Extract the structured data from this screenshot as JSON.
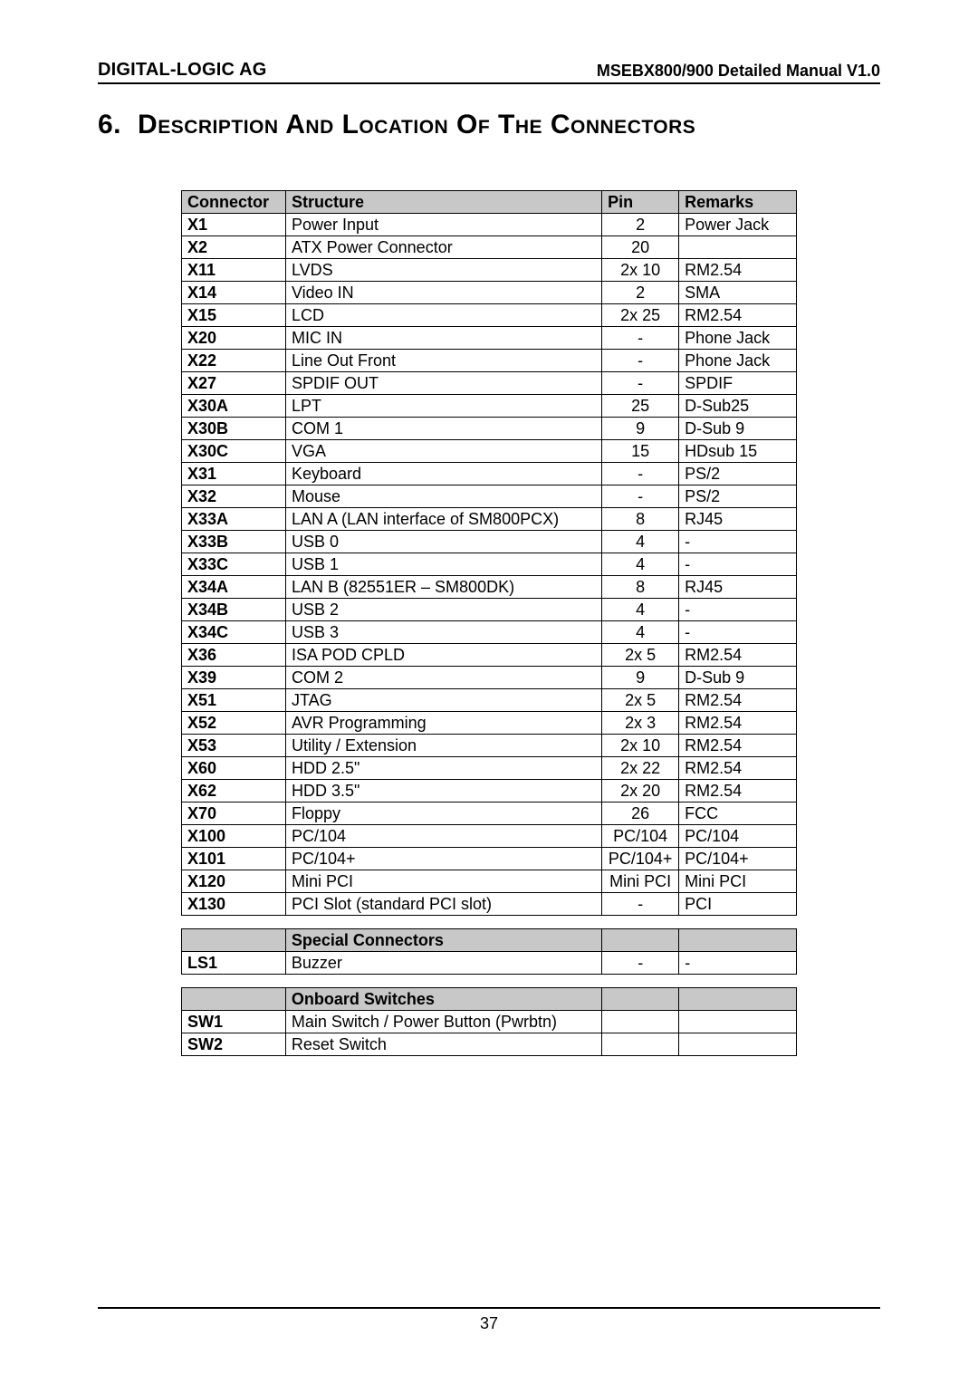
{
  "header": {
    "left": "DIGITAL-LOGIC AG",
    "right": "MSEBX800/900 Detailed Manual V1.0"
  },
  "section_title": {
    "num": "6.",
    "text": "Description And Location Of The Connectors"
  },
  "main_table": {
    "headers": [
      "Connector",
      "Structure",
      "Pin",
      "Remarks"
    ],
    "rows": [
      [
        "X1",
        "Power Input",
        "2",
        "Power Jack"
      ],
      [
        "X2",
        "ATX Power Connector",
        "20",
        ""
      ],
      [
        "X11",
        "LVDS",
        "2x 10",
        "RM2.54"
      ],
      [
        "X14",
        "Video IN",
        "2",
        "SMA"
      ],
      [
        "X15",
        "LCD",
        "2x 25",
        "RM2.54"
      ],
      [
        "X20",
        "MIC IN",
        "-",
        "Phone Jack"
      ],
      [
        "X22",
        "Line Out Front",
        "-",
        "Phone Jack"
      ],
      [
        "X27",
        "SPDIF OUT",
        "-",
        "SPDIF"
      ],
      [
        "X30A",
        "LPT",
        "25",
        "D-Sub25"
      ],
      [
        "X30B",
        "COM 1",
        "9",
        "D-Sub 9"
      ],
      [
        "X30C",
        "VGA",
        "15",
        "HDsub 15"
      ],
      [
        "X31",
        "Keyboard",
        "-",
        "PS/2"
      ],
      [
        "X32",
        "Mouse",
        "-",
        "PS/2"
      ],
      [
        "X33A",
        "LAN A (LAN interface of SM800PCX)",
        "8",
        "RJ45"
      ],
      [
        "X33B",
        "USB 0",
        "4",
        "-"
      ],
      [
        "X33C",
        "USB 1",
        "4",
        "-"
      ],
      [
        "X34A",
        "LAN B (82551ER – SM800DK)",
        "8",
        "RJ45"
      ],
      [
        "X34B",
        "USB 2",
        "4",
        "-"
      ],
      [
        "X34C",
        "USB 3",
        "4",
        "-"
      ],
      [
        "X36",
        "ISA POD CPLD",
        "2x 5",
        "RM2.54"
      ],
      [
        "X39",
        "COM 2",
        "9",
        "D-Sub 9"
      ],
      [
        "X51",
        "JTAG",
        "2x 5",
        "RM2.54"
      ],
      [
        "X52",
        "AVR Programming",
        "2x 3",
        "RM2.54"
      ],
      [
        "X53",
        "Utility / Extension",
        "2x 10",
        "RM2.54"
      ],
      [
        "X60",
        "HDD 2.5\"",
        "2x 22",
        "RM2.54"
      ],
      [
        "X62",
        "HDD 3.5\"",
        "2x 20",
        "RM2.54"
      ],
      [
        "X70",
        "Floppy",
        "26",
        "FCC"
      ],
      [
        "X100",
        "PC/104",
        "PC/104",
        "PC/104"
      ],
      [
        "X101",
        "PC/104+",
        "PC/104+",
        "PC/104+"
      ],
      [
        "X120",
        "Mini PCI",
        "Mini PCI",
        "Mini PCI"
      ],
      [
        "X130",
        "PCI Slot (standard PCI slot)",
        "-",
        "PCI"
      ]
    ]
  },
  "special_table": {
    "header": "Special Connectors",
    "rows": [
      [
        "LS1",
        "Buzzer",
        "-",
        "-"
      ]
    ]
  },
  "switches_table": {
    "header": "Onboard Switches",
    "rows": [
      [
        "SW1",
        "Main Switch / Power Button (Pwrbtn)",
        "",
        ""
      ],
      [
        "SW2",
        "Reset Switch",
        "",
        ""
      ]
    ]
  },
  "page_number": "37"
}
